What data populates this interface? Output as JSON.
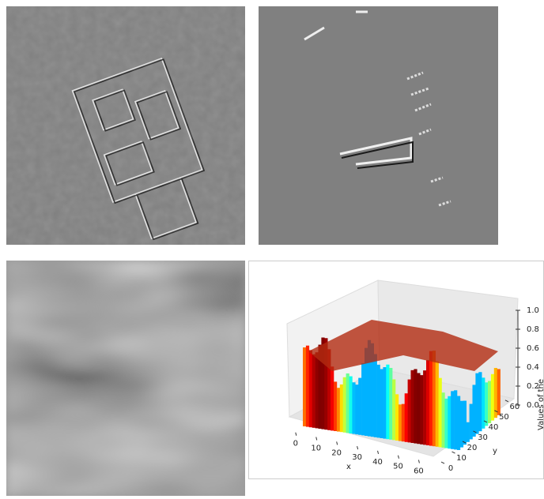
{
  "chart_data": {
    "type": "surface3d",
    "xlabel": "x",
    "ylabel": "y",
    "zlabel": "Values of the",
    "xlim": [
      -3,
      66
    ],
    "ylim": [
      -3,
      66
    ],
    "zlim": [
      0,
      1
    ],
    "xticks": [
      0,
      10,
      20,
      30,
      40,
      50,
      60
    ],
    "yticks": [
      0,
      10,
      20,
      30,
      40,
      50,
      60
    ],
    "zticks": [
      {
        "value": 0,
        "label": "0.0"
      },
      {
        "value": 0.2,
        "label": "0.2"
      },
      {
        "value": 0.4,
        "label": "0.4"
      },
      {
        "value": 0.6,
        "label": "0.6"
      },
      {
        "value": 0.8,
        "label": "0.8"
      },
      {
        "value": 1,
        "label": "1.0"
      }
    ]
  }
}
